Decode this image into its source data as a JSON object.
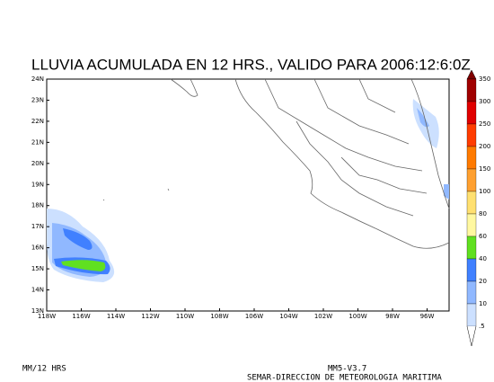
{
  "title": "LLUVIA ACUMULADA EN 12 HRS., VALIDO PARA 2006:12:6:0Z",
  "map": {
    "lat_labels": [
      "24N",
      "23N",
      "22N",
      "21N",
      "20N",
      "19N",
      "18N",
      "17N",
      "16N",
      "15N",
      "14N",
      "13N"
    ],
    "lon_labels": [
      "118W",
      "116W",
      "114W",
      "112W",
      "110W",
      "108W",
      "106W",
      "104W",
      "102W",
      "100W",
      "98W",
      "96W"
    ]
  },
  "colorbar": {
    "labels": [
      "350",
      "300",
      "250",
      "200",
      "150",
      "100",
      "80",
      "60",
      "40",
      "20",
      "10",
      ".5"
    ],
    "colors": [
      "#a00000",
      "#e00000",
      "#ff3c00",
      "#ff7a00",
      "#ffa030",
      "#ffe070",
      "#fff8a0",
      "#60e020",
      "#4080ff",
      "#90b8ff",
      "#cce0ff"
    ],
    "top_color": "#800000"
  },
  "footer": {
    "units": "MM/12 HRS",
    "model": "MM5-V3.7",
    "agency": "SEMAR-DIRECCION DE METEOROLOGIA MARITIMA"
  }
}
